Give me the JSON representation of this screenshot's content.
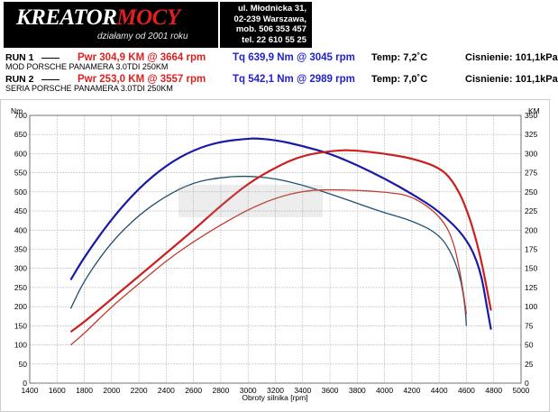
{
  "header": {
    "logo_prefix": "KREATOR",
    "logo_accent": "MOCY",
    "logo_sub": "działamy od 2001 roku",
    "address": [
      "ul. Młodnicka 31,",
      "02-239  Warszawa,",
      "mob.  506 353 457",
      "tel.  22 610 55 25"
    ]
  },
  "runs": [
    {
      "label": "RUN 1",
      "power": "Pwr  304,9 KM @ 3664 rpm",
      "torque": "Tq 639,9 Nm @ 3045 rpm",
      "temp": "Temp: 7,2˚C",
      "pressure": "Cisnienie: 101,1kPa",
      "desc": "MOD PORSCHE PANAMERA  3.0TDI 250KM"
    },
    {
      "label": "RUN 2",
      "power": "Pwr  253,0 KM @ 3557 rpm",
      "torque": "Tq 542,1 Nm @ 2989 rpm",
      "temp": "Temp: 7,0˚C",
      "pressure": "Cisnienie: 101,1kPa",
      "desc": "SERIA PORSCHE PANAMERA  3.0TDI 250KM"
    }
  ],
  "colors": {
    "run1_torque": "#1a1aa6",
    "run1_power": "#cc1f1f",
    "run2_torque": "#1f4f6e",
    "run2_power": "#c23a2e",
    "grid": "#b8b8b8"
  },
  "chart_data": {
    "type": "line",
    "xlabel": "Obroty silnika [rpm]",
    "ylabel_left": "Nm",
    "ylabel_right": "KM",
    "xlim": [
      1400,
      5000
    ],
    "ylim_left": [
      0,
      700
    ],
    "ylim_right": [
      0,
      350
    ],
    "x_ticks": [
      1400,
      1600,
      1800,
      2000,
      2200,
      2400,
      2600,
      2800,
      3000,
      3200,
      3400,
      3600,
      3800,
      4000,
      4200,
      4400,
      4600,
      4800,
      5000
    ],
    "y_ticks_left": [
      0,
      50,
      100,
      150,
      200,
      250,
      300,
      350,
      400,
      450,
      500,
      550,
      600,
      650,
      700
    ],
    "y_ticks_right": [
      0,
      25,
      50,
      75,
      100,
      125,
      150,
      175,
      200,
      225,
      250,
      275,
      300,
      325,
      350
    ],
    "grid": true,
    "series": [
      {
        "key": "run1_torque",
        "axis": "left",
        "x": [
          1700,
          1800,
          2000,
          2200,
          2400,
          2600,
          2800,
          3000,
          3045,
          3200,
          3400,
          3600,
          3800,
          4000,
          4200,
          4400,
          4600,
          4700,
          4750,
          4780
        ],
        "y": [
          270,
          330,
          430,
          510,
          570,
          610,
          632,
          639,
          640,
          636,
          620,
          600,
          570,
          535,
          495,
          450,
          380,
          300,
          200,
          140
        ]
      },
      {
        "key": "run2_torque",
        "axis": "left",
        "x": [
          1700,
          1800,
          2000,
          2200,
          2400,
          2600,
          2800,
          2989,
          3200,
          3400,
          3600,
          3800,
          4000,
          4200,
          4400,
          4500,
          4560,
          4590,
          4600
        ],
        "y": [
          195,
          270,
          370,
          440,
          490,
          525,
          538,
          542,
          535,
          518,
          495,
          470,
          445,
          425,
          390,
          335,
          270,
          200,
          150
        ]
      },
      {
        "key": "run1_power",
        "axis": "right",
        "x": [
          1700,
          1800,
          2000,
          2200,
          2400,
          2600,
          2800,
          3000,
          3200,
          3400,
          3664,
          3800,
          4000,
          4200,
          4400,
          4500,
          4600,
          4700,
          4780
        ],
        "y": [
          67,
          80,
          110,
          140,
          170,
          200,
          232,
          261,
          282,
          298,
          304.9,
          304,
          300,
          294,
          282,
          265,
          230,
          170,
          95
        ]
      },
      {
        "key": "run2_power",
        "axis": "right",
        "x": [
          1700,
          1800,
          2000,
          2200,
          2400,
          2600,
          2800,
          3000,
          3200,
          3400,
          3557,
          3800,
          4000,
          4200,
          4400,
          4500,
          4560,
          4600
        ],
        "y": [
          50,
          65,
          100,
          130,
          160,
          185,
          207,
          227,
          242,
          251,
          253,
          252,
          250,
          245,
          220,
          190,
          140,
          90
        ]
      }
    ]
  }
}
